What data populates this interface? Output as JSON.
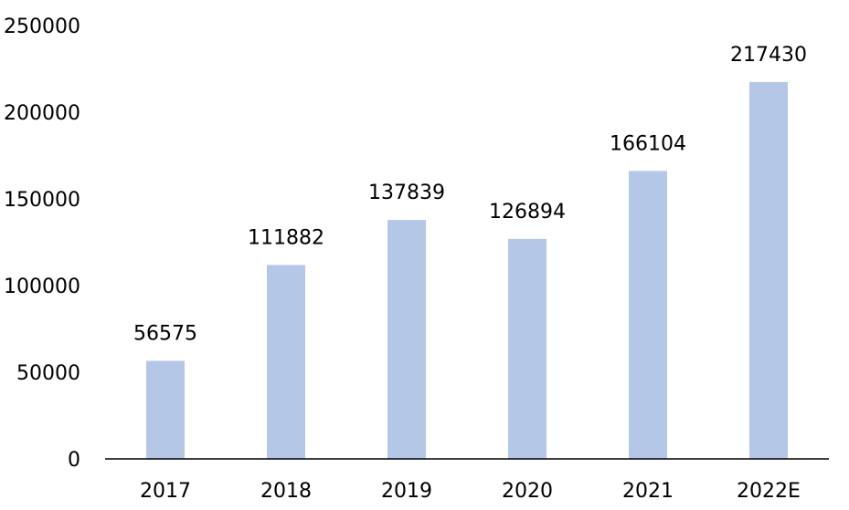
{
  "chart_data": {
    "type": "bar",
    "categories": [
      "2017",
      "2018",
      "2019",
      "2020",
      "2021",
      "2022E"
    ],
    "values": [
      56575,
      111882,
      137839,
      126894,
      166104,
      217430
    ],
    "data_labels": [
      "56575",
      "111882",
      "137839",
      "126894",
      "166104",
      "217430"
    ],
    "yticks": [
      "0",
      "50000",
      "100000",
      "150000",
      "200000",
      "250000"
    ],
    "ylim": [
      0,
      250000
    ],
    "grid": false,
    "bar_color": "#b4c7e7",
    "axis_color": "#000000"
  }
}
